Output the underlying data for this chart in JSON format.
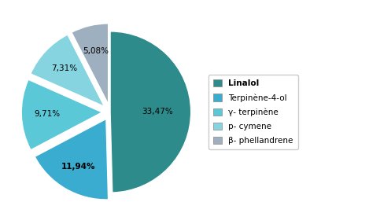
{
  "labels": [
    "Linalol",
    "Terpinène-4-ol",
    "γ- terpinène",
    "p- cymene",
    "β- phellandrene"
  ],
  "values": [
    33.47,
    11.94,
    9.71,
    7.31,
    5.08
  ],
  "colors": [
    "#2e8b8b",
    "#3aaccf",
    "#5bc8d8",
    "#85d4e0",
    "#9eafc0"
  ],
  "explode": [
    0,
    0.1,
    0.1,
    0.1,
    0.1
  ],
  "legend_labels": [
    "Linalol",
    "Terpinène-4-ol",
    "γ- terpinène",
    "p- cymene",
    "β- phellandrene"
  ],
  "background_color": "#ffffff",
  "startangle": 90,
  "pct_labels": [
    "33,47%",
    "11,94%",
    "9,71%",
    "7,31%",
    "5,08%"
  ],
  "bold_idx": 1
}
